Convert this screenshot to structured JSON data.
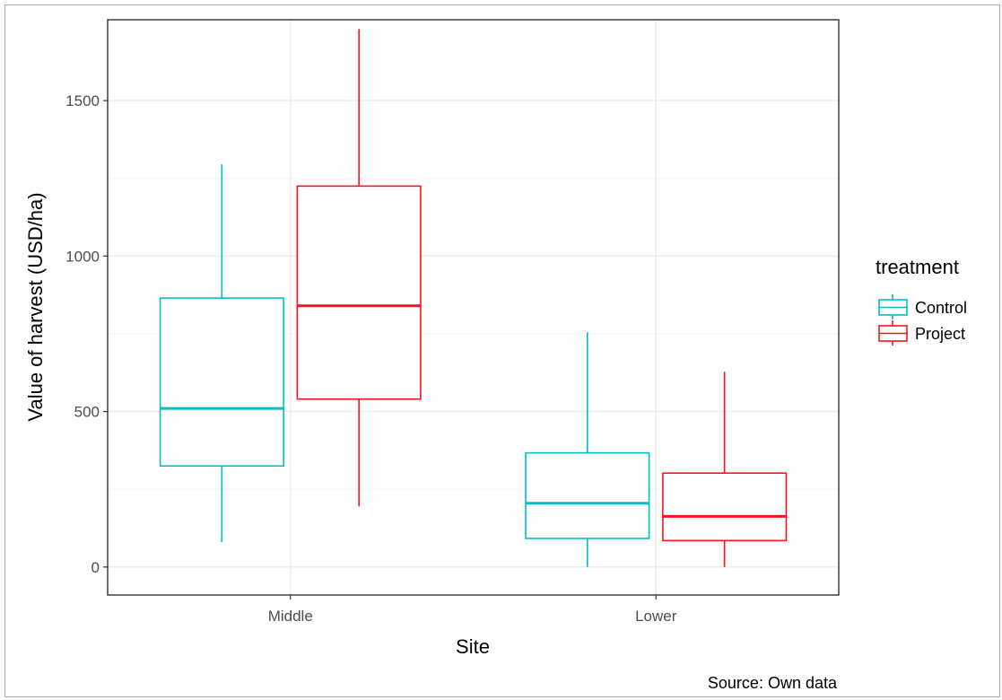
{
  "chart_data": {
    "type": "boxplot",
    "xlabel": "Site",
    "ylabel": "Value of harvest (USD/ha)",
    "caption": "Source: Own data",
    "categories": [
      "Middle",
      "Lower"
    ],
    "ylim": [
      -90,
      1760
    ],
    "yticks": [
      0,
      500,
      1000,
      1500
    ],
    "grid": true,
    "legend": {
      "title": "treatment",
      "position": "right",
      "entries": [
        "Control",
        "Project"
      ]
    },
    "colors": {
      "Control": "#00bfc4",
      "Project": "#f8151b"
    },
    "series": [
      {
        "name": "Control",
        "boxes": [
          {
            "category": "Middle",
            "min": 80,
            "q1": 325,
            "median": 510,
            "q3": 865,
            "max": 1295
          },
          {
            "category": "Lower",
            "min": 0,
            "q1": 92,
            "median": 205,
            "q3": 367,
            "max": 755
          }
        ]
      },
      {
        "name": "Project",
        "boxes": [
          {
            "category": "Middle",
            "min": 195,
            "q1": 540,
            "median": 840,
            "q3": 1225,
            "max": 1730
          },
          {
            "category": "Lower",
            "min": 0,
            "q1": 85,
            "median": 163,
            "q3": 302,
            "max": 628
          }
        ]
      }
    ]
  }
}
